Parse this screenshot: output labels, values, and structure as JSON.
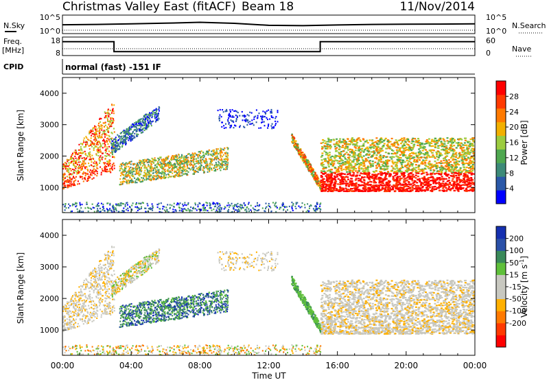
{
  "header": {
    "station": "Christmas Valley East (fitACF)",
    "beam": "Beam 18",
    "date": "11/Nov/2014"
  },
  "panels": {
    "nsky": {
      "left_label": "N.Sky",
      "left_ticks": [
        "10^5",
        "10^0"
      ],
      "right_ticks": [
        "10^5",
        "10^0"
      ],
      "right_label": "N.Search"
    },
    "freq": {
      "left_label_1": "Freq.",
      "left_label_2": "[MHz]",
      "left_ticks": [
        "18",
        "8"
      ],
      "right_ticks": [
        "60",
        "0"
      ],
      "right_label": "Nave"
    },
    "cpid": {
      "label": "CPID",
      "text": "normal (fast) -151 IF"
    }
  },
  "colors": {
    "power": [
      "#0000ff",
      "#2a58a8",
      "#3c8a78",
      "#4fa850",
      "#9ccc40",
      "#f2b000",
      "#ff7a00",
      "#ff3a00",
      "#ff0000"
    ],
    "velocity": [
      "#1530b0",
      "#2a50a8",
      "#3a8a5a",
      "#5fc03a",
      "#c8c8c0",
      "#c8c8c0",
      "#ffb000",
      "#ff7a00",
      "#ff3a00",
      "#ff0000"
    ]
  },
  "chart_data": [
    {
      "type": "line",
      "name": "N.Sky / N.Search",
      "x": [
        "00:00",
        "02:00",
        "04:00",
        "06:00",
        "08:00",
        "10:00",
        "12:00",
        "14:00",
        "16:00",
        "18:00",
        "20:00",
        "22:00",
        "24:00"
      ],
      "series": [
        {
          "values": [
            300,
            400,
            600,
            1000,
            2000,
            900,
            200,
            150,
            250,
            400,
            450,
            500,
            600
          ]
        }
      ],
      "ylim": [
        1,
        100000
      ],
      "log_scale": true
    },
    {
      "type": "line",
      "name": "Freq. / Nave",
      "x": [
        "00:00",
        "03:00",
        "03:00",
        "15:00",
        "15:00",
        "24:00"
      ],
      "series": [
        {
          "values": [
            16,
            16,
            10,
            10,
            16,
            16
          ]
        }
      ],
      "ylim": [
        8,
        18
      ]
    },
    {
      "type": "heatmap",
      "ylabel": "Slant Range [km]",
      "y_ticks": [
        "1000",
        "2000",
        "3000",
        "4000"
      ],
      "ylim": [
        200,
        4500
      ],
      "xlim_hours": [
        0,
        24
      ],
      "colorbar": {
        "label": "Power [dB]",
        "ticks": [
          "4",
          "8",
          "12",
          "16",
          "20",
          "24",
          "28"
        ],
        "range": [
          0,
          32
        ]
      }
    },
    {
      "type": "heatmap",
      "xlabel": "Time UT",
      "ylabel": "Slant Range [km]",
      "x_ticks": [
        "00:00",
        "04:00",
        "08:00",
        "12:00",
        "16:00",
        "20:00",
        "00:00"
      ],
      "y_ticks": [
        "1000",
        "2000",
        "3000",
        "4000"
      ],
      "ylim": [
        200,
        4500
      ],
      "xlim_hours": [
        0,
        24
      ],
      "colorbar": {
        "label": "Velocity [m s",
        "label_sup": "-1",
        "label_end": "]",
        "ticks": [
          "200",
          "100",
          "50",
          "15",
          "-15",
          "-50",
          "-100",
          "-200"
        ],
        "range": [
          -250,
          250
        ]
      }
    }
  ]
}
